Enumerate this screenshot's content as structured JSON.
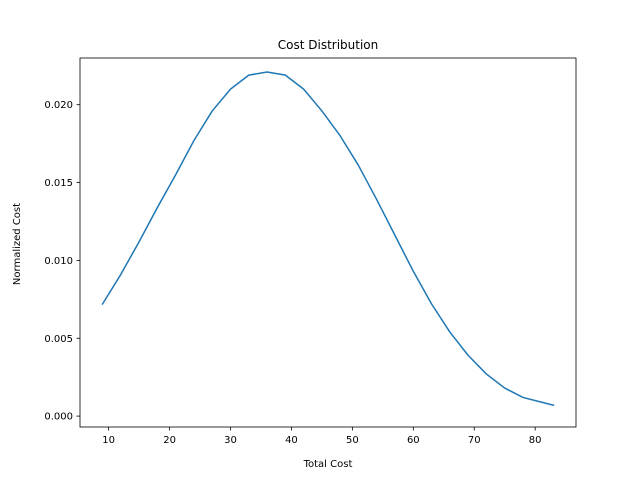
{
  "chart_data": {
    "type": "line",
    "title": "Cost Distribution",
    "xlabel": "Total Cost",
    "ylabel": "Normalized Cost",
    "xlim": [
      5.3,
      86.7
    ],
    "ylim": [
      -0.0007,
      0.023
    ],
    "xticks": [
      10,
      20,
      30,
      40,
      50,
      60,
      70,
      80
    ],
    "xtick_labels": [
      "10",
      "20",
      "30",
      "40",
      "50",
      "60",
      "70",
      "80"
    ],
    "yticks": [
      0.0,
      0.005,
      0.01,
      0.015,
      0.02
    ],
    "ytick_labels": [
      "0.000",
      "0.005",
      "0.010",
      "0.015",
      "0.020"
    ],
    "grid": false,
    "series": [
      {
        "color": "#1f77b4",
        "x": [
          9,
          12,
          15,
          18,
          21,
          24,
          27,
          30,
          33,
          36,
          39,
          42,
          45,
          48,
          51,
          54,
          57,
          60,
          63,
          66,
          69,
          72,
          75,
          78,
          81,
          83
        ],
        "y": [
          0.0072,
          0.0091,
          0.0112,
          0.0134,
          0.0155,
          0.0177,
          0.0196,
          0.021,
          0.0219,
          0.0221,
          0.0219,
          0.021,
          0.0196,
          0.018,
          0.0161,
          0.0139,
          0.0116,
          0.0093,
          0.0072,
          0.0054,
          0.0039,
          0.0027,
          0.0018,
          0.0012,
          0.0009,
          0.0007
        ]
      }
    ]
  }
}
